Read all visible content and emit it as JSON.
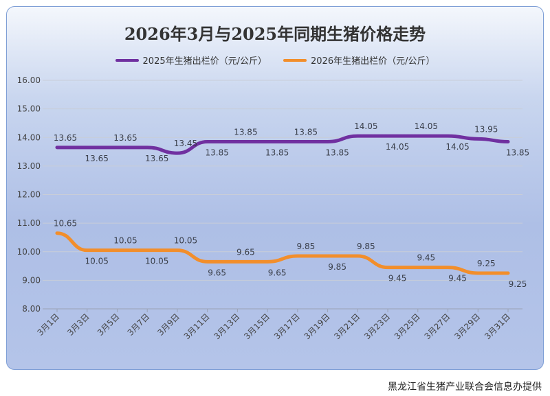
{
  "chart_data": {
    "type": "line",
    "title": "2026年3月与2025年同期生猪价格走势",
    "categories": [
      "3月1日",
      "3月3日",
      "3月5日",
      "3月7日",
      "3月9日",
      "3月11日",
      "3月13日",
      "3月15日",
      "3月17日",
      "3月19日",
      "3月21日",
      "3月23日",
      "3月25日",
      "3月27日",
      "3月29日",
      "3月31日"
    ],
    "series": [
      {
        "name": "2025年生猪出栏价（元/公斤）",
        "color": "#7030a0",
        "values": [
          13.65,
          13.65,
          13.65,
          13.65,
          13.45,
          13.85,
          13.85,
          13.85,
          13.85,
          13.85,
          14.05,
          14.05,
          14.05,
          14.05,
          13.95,
          13.85
        ]
      },
      {
        "name": "2026年生猪出栏价（元/公斤）",
        "color": "#f28e2b",
        "values": [
          10.65,
          10.05,
          10.05,
          10.05,
          10.05,
          9.65,
          9.65,
          9.65,
          9.85,
          9.85,
          9.85,
          9.45,
          9.45,
          9.45,
          9.25,
          9.25
        ]
      }
    ],
    "ylim": [
      8,
      16
    ],
    "yticks": [
      "8.00",
      "9.00",
      "10.00",
      "11.00",
      "12.00",
      "13.00",
      "14.00",
      "15.00",
      "16.00"
    ],
    "grid": true,
    "legend": "top",
    "xlabel": "",
    "ylabel": ""
  },
  "footer": "黑龙江省生猪产业联合会信息办提供"
}
